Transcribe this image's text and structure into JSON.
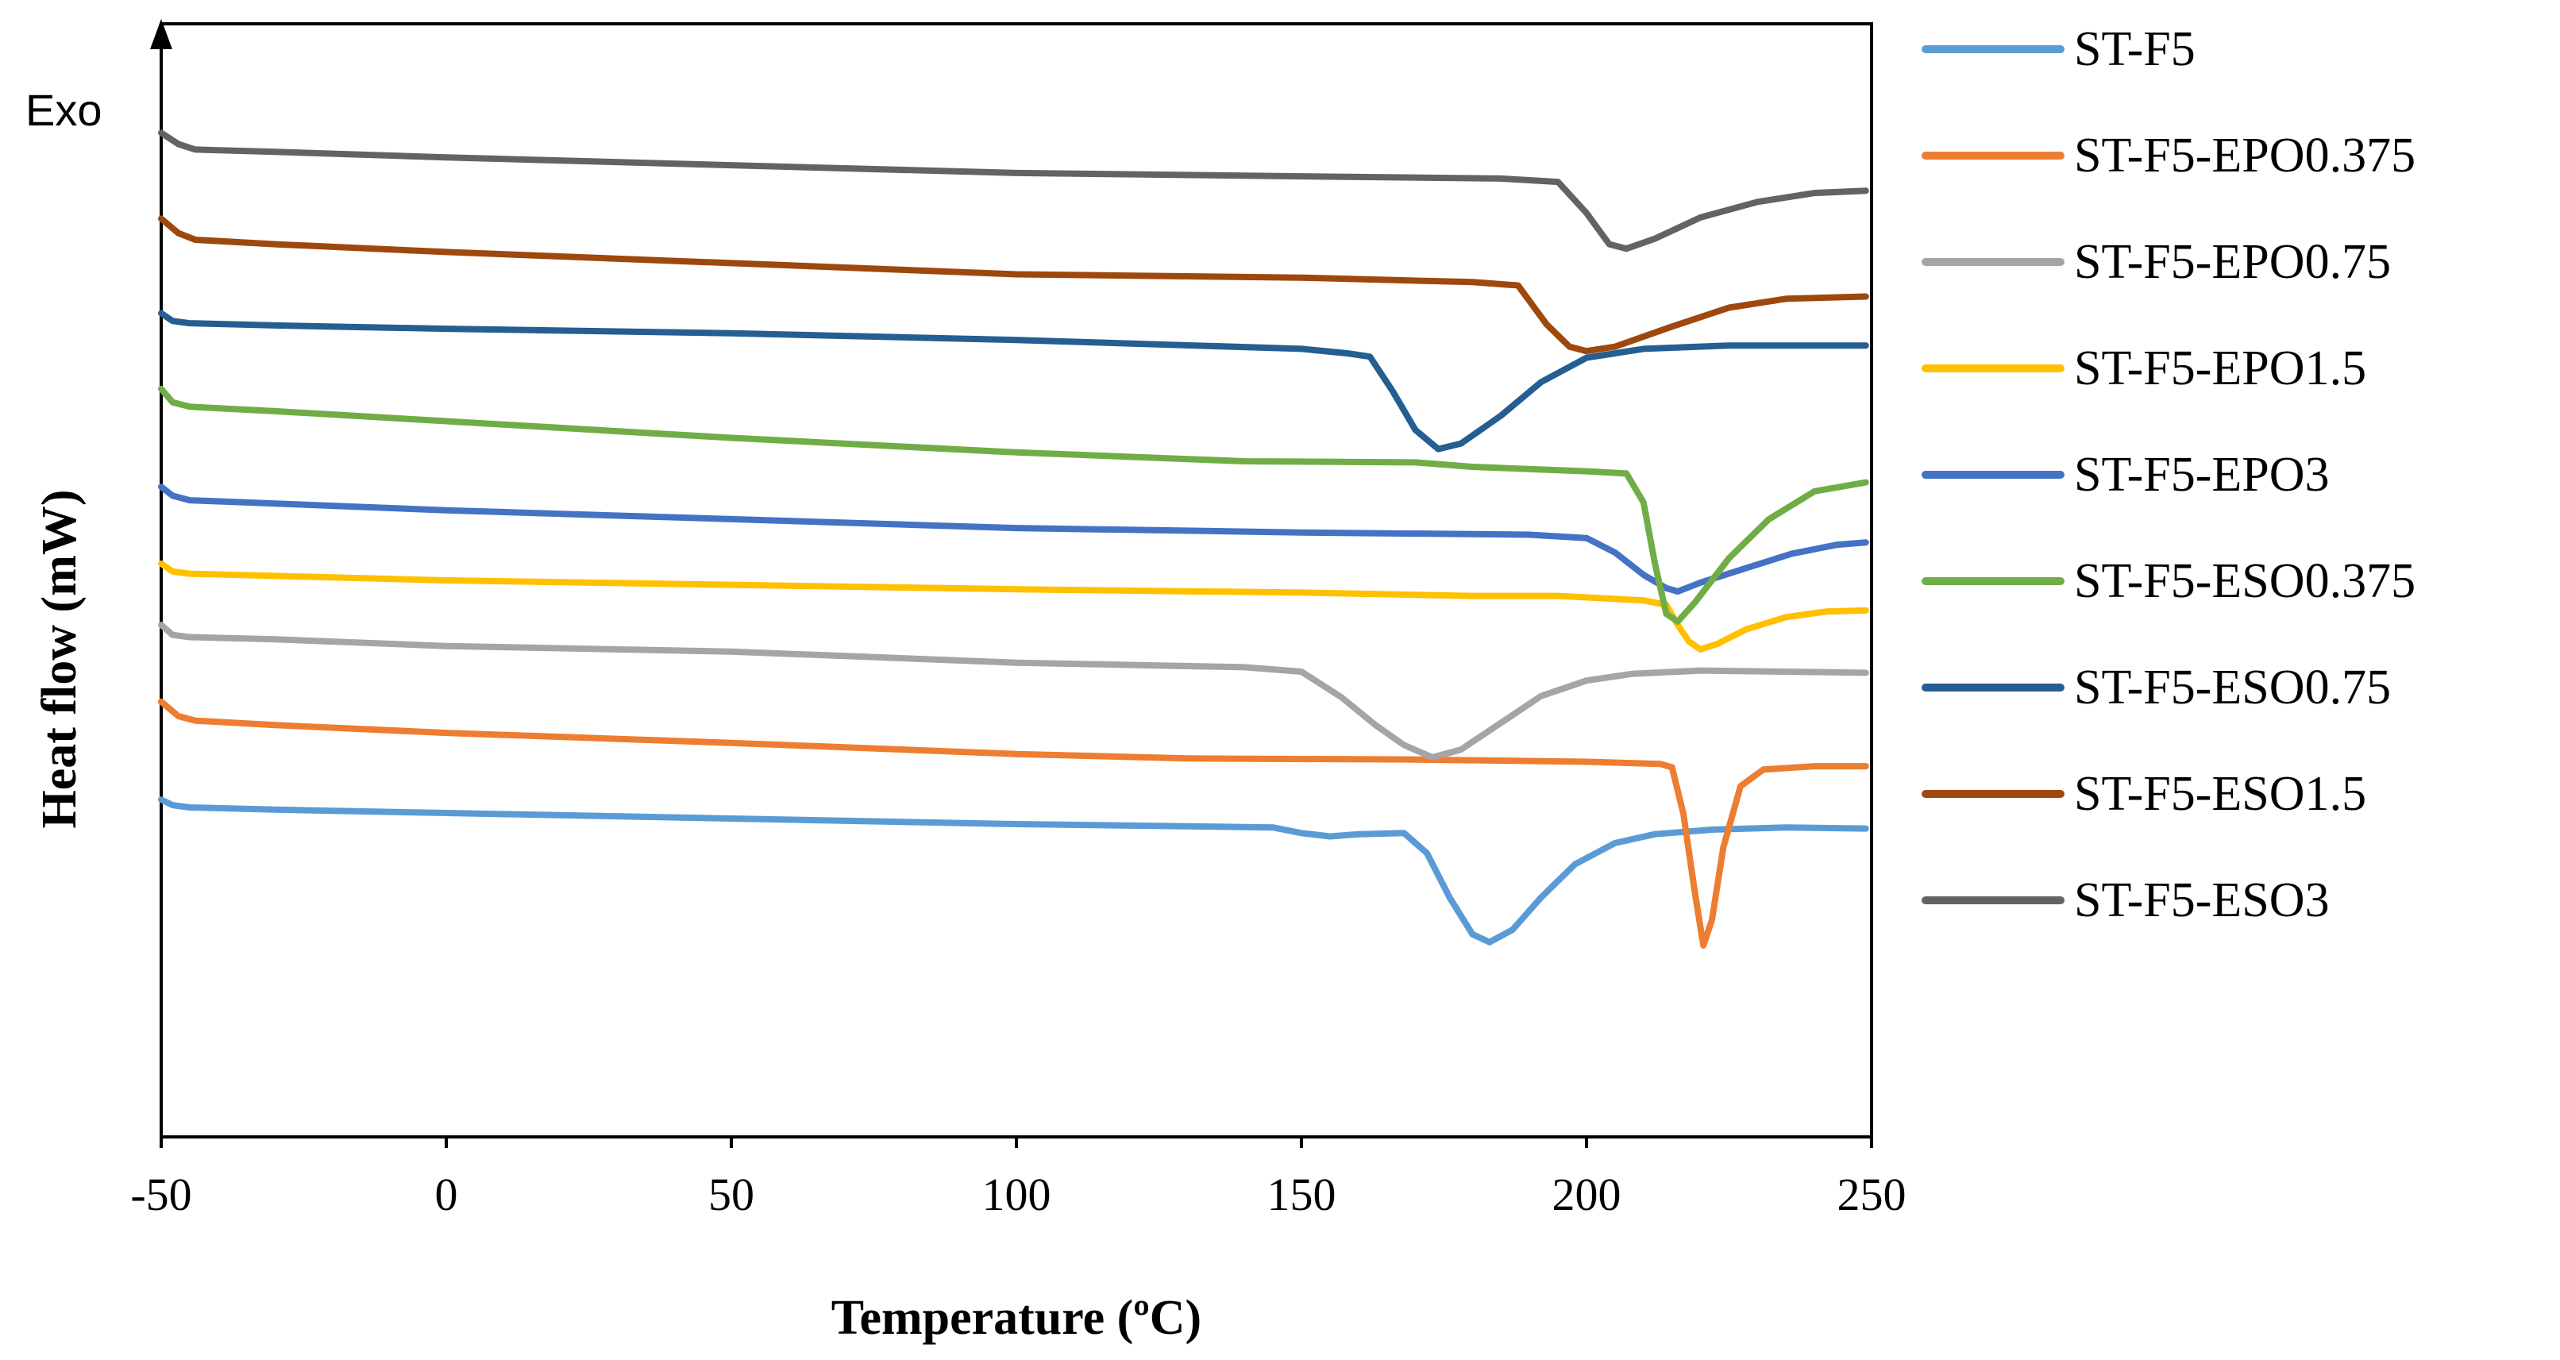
{
  "chart_data": {
    "type": "line",
    "title": "",
    "xlabel": "Temperature (ºC)",
    "ylabel": "Heat flow (mW)",
    "annotation": "Exo",
    "xlim": [
      -50,
      250
    ],
    "ylim": [
      0,
      100
    ],
    "x_ticks": [
      "-50",
      "0",
      "50",
      "100",
      "150",
      "200",
      "250"
    ],
    "y_ticks_shown": false,
    "legend_position": "right",
    "series": [
      {
        "name": "ST-F5",
        "color": "#5B9BD5",
        "points": [
          [
            -50,
            30.3
          ],
          [
            -48,
            29.8
          ],
          [
            -45,
            29.6
          ],
          [
            -30,
            29.4
          ],
          [
            0,
            29.1
          ],
          [
            50,
            28.6
          ],
          [
            100,
            28.1
          ],
          [
            145,
            27.8
          ],
          [
            150,
            27.3
          ],
          [
            155,
            27.0
          ],
          [
            160,
            27.2
          ],
          [
            168,
            27.3
          ],
          [
            172,
            25.5
          ],
          [
            176,
            21.5
          ],
          [
            180,
            18.2
          ],
          [
            183,
            17.5
          ],
          [
            187,
            18.6
          ],
          [
            192,
            21.5
          ],
          [
            198,
            24.5
          ],
          [
            205,
            26.4
          ],
          [
            212,
            27.2
          ],
          [
            222,
            27.6
          ],
          [
            235,
            27.8
          ],
          [
            249,
            27.7
          ]
        ]
      },
      {
        "name": "ST-F5-EPO0.375",
        "color": "#ED7D31",
        "points": [
          [
            -50,
            39.1
          ],
          [
            -47,
            37.8
          ],
          [
            -44,
            37.4
          ],
          [
            -30,
            37.0
          ],
          [
            0,
            36.3
          ],
          [
            50,
            35.4
          ],
          [
            100,
            34.4
          ],
          [
            130,
            34.0
          ],
          [
            170,
            33.9
          ],
          [
            200,
            33.7
          ],
          [
            213,
            33.5
          ],
          [
            215,
            33.2
          ],
          [
            217,
            29.0
          ],
          [
            219,
            22.0
          ],
          [
            220.5,
            17.2
          ],
          [
            222,
            19.5
          ],
          [
            224,
            26.0
          ],
          [
            227,
            31.5
          ],
          [
            231,
            33.0
          ],
          [
            240,
            33.3
          ],
          [
            249,
            33.3
          ]
        ]
      },
      {
        "name": "ST-F5-EPO0.75",
        "color": "#A5A5A5",
        "points": [
          [
            -50,
            46.0
          ],
          [
            -48,
            45.1
          ],
          [
            -45,
            44.9
          ],
          [
            -30,
            44.7
          ],
          [
            0,
            44.1
          ],
          [
            50,
            43.6
          ],
          [
            100,
            42.6
          ],
          [
            140,
            42.2
          ],
          [
            150,
            41.8
          ],
          [
            157,
            39.5
          ],
          [
            163,
            37.0
          ],
          [
            168,
            35.2
          ],
          [
            173,
            34.1
          ],
          [
            178,
            34.8
          ],
          [
            185,
            37.2
          ],
          [
            192,
            39.6
          ],
          [
            200,
            41.0
          ],
          [
            208,
            41.6
          ],
          [
            220,
            41.9
          ],
          [
            249,
            41.7
          ]
        ]
      },
      {
        "name": "ST-F5-EPO1.5",
        "color": "#FFC000",
        "points": [
          [
            -50,
            51.5
          ],
          [
            -48,
            50.8
          ],
          [
            -45,
            50.6
          ],
          [
            -30,
            50.4
          ],
          [
            0,
            50.0
          ],
          [
            50,
            49.6
          ],
          [
            100,
            49.2
          ],
          [
            150,
            48.9
          ],
          [
            180,
            48.6
          ],
          [
            195,
            48.6
          ],
          [
            210,
            48.2
          ],
          [
            214,
            47.8
          ],
          [
            216,
            46.0
          ],
          [
            218,
            44.5
          ],
          [
            220,
            43.8
          ],
          [
            223,
            44.3
          ],
          [
            228,
            45.6
          ],
          [
            235,
            46.7
          ],
          [
            242,
            47.2
          ],
          [
            249,
            47.3
          ]
        ]
      },
      {
        "name": "ST-F5-EPO3",
        "color": "#4472C4",
        "points": [
          [
            -50,
            58.4
          ],
          [
            -48,
            57.6
          ],
          [
            -45,
            57.2
          ],
          [
            -30,
            56.9
          ],
          [
            0,
            56.3
          ],
          [
            50,
            55.5
          ],
          [
            100,
            54.7
          ],
          [
            150,
            54.3
          ],
          [
            190,
            54.1
          ],
          [
            200,
            53.8
          ],
          [
            205,
            52.5
          ],
          [
            210,
            50.5
          ],
          [
            214,
            49.3
          ],
          [
            216,
            49.0
          ],
          [
            220,
            49.8
          ],
          [
            228,
            51.1
          ],
          [
            236,
            52.4
          ],
          [
            244,
            53.2
          ],
          [
            249,
            53.4
          ]
        ]
      },
      {
        "name": "ST-F5-ESO0.375",
        "color": "#70AD47",
        "points": [
          [
            -50,
            67.2
          ],
          [
            -48,
            66.0
          ],
          [
            -45,
            65.6
          ],
          [
            -30,
            65.2
          ],
          [
            0,
            64.3
          ],
          [
            50,
            62.8
          ],
          [
            100,
            61.5
          ],
          [
            140,
            60.7
          ],
          [
            170,
            60.6
          ],
          [
            180,
            60.2
          ],
          [
            200,
            59.8
          ],
          [
            207,
            59.6
          ],
          [
            210,
            57.0
          ],
          [
            212,
            51.5
          ],
          [
            214,
            47.0
          ],
          [
            216,
            46.3
          ],
          [
            219,
            48.0
          ],
          [
            225,
            52.0
          ],
          [
            232,
            55.5
          ],
          [
            240,
            58.0
          ],
          [
            249,
            58.8
          ]
        ]
      },
      {
        "name": "ST-F5-ESO0.75",
        "color": "#255E91",
        "points": [
          [
            -50,
            74.0
          ],
          [
            -48,
            73.3
          ],
          [
            -45,
            73.1
          ],
          [
            -30,
            72.9
          ],
          [
            0,
            72.6
          ],
          [
            50,
            72.2
          ],
          [
            100,
            71.6
          ],
          [
            150,
            70.8
          ],
          [
            158,
            70.4
          ],
          [
            162,
            70.1
          ],
          [
            166,
            67.0
          ],
          [
            170,
            63.5
          ],
          [
            174,
            61.8
          ],
          [
            178,
            62.3
          ],
          [
            185,
            64.8
          ],
          [
            192,
            67.8
          ],
          [
            200,
            70.0
          ],
          [
            210,
            70.8
          ],
          [
            225,
            71.1
          ],
          [
            249,
            71.1
          ]
        ]
      },
      {
        "name": "ST-F5-ESO1.5",
        "color": "#9E480E",
        "points": [
          [
            -50,
            82.5
          ],
          [
            -47,
            81.2
          ],
          [
            -44,
            80.6
          ],
          [
            -30,
            80.2
          ],
          [
            0,
            79.5
          ],
          [
            50,
            78.5
          ],
          [
            100,
            77.5
          ],
          [
            150,
            77.2
          ],
          [
            180,
            76.8
          ],
          [
            188,
            76.5
          ],
          [
            193,
            73.0
          ],
          [
            197,
            71.0
          ],
          [
            200,
            70.6
          ],
          [
            205,
            71.0
          ],
          [
            215,
            72.8
          ],
          [
            225,
            74.5
          ],
          [
            235,
            75.3
          ],
          [
            249,
            75.5
          ]
        ]
      },
      {
        "name": "ST-F5-ESO3",
        "color": "#636363",
        "points": [
          [
            -50,
            90.2
          ],
          [
            -47,
            89.2
          ],
          [
            -44,
            88.7
          ],
          [
            -30,
            88.5
          ],
          [
            0,
            88.0
          ],
          [
            50,
            87.3
          ],
          [
            100,
            86.6
          ],
          [
            150,
            86.3
          ],
          [
            185,
            86.1
          ],
          [
            195,
            85.8
          ],
          [
            200,
            83.0
          ],
          [
            204,
            80.2
          ],
          [
            207,
            79.8
          ],
          [
            212,
            80.7
          ],
          [
            220,
            82.6
          ],
          [
            230,
            84.0
          ],
          [
            240,
            84.8
          ],
          [
            249,
            85.0
          ]
        ]
      }
    ]
  }
}
